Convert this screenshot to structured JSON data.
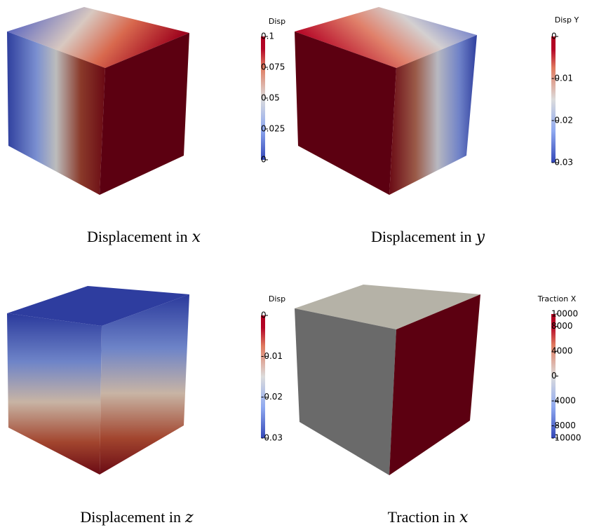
{
  "panels": [
    {
      "caption": "Displacement in",
      "variable": "x",
      "colorbar": {
        "title": "Disp",
        "range": [
          0,
          0.1
        ],
        "ticks": [
          0.1,
          0.075,
          0.05,
          0.025,
          0
        ]
      }
    },
    {
      "caption": "Displacement in",
      "variable": "y",
      "colorbar": {
        "title": "Disp Y",
        "range": [
          -0.03,
          0
        ],
        "ticks": [
          0,
          -0.01,
          -0.02,
          -0.03
        ]
      }
    },
    {
      "caption": "Displacement in",
      "variable": "z",
      "colorbar": {
        "title": "Disp",
        "range": [
          -0.03,
          0
        ],
        "ticks": [
          0,
          -0.01,
          -0.02,
          -0.03
        ]
      }
    },
    {
      "caption": "Traction in",
      "variable": "x",
      "colorbar": {
        "title": "Traction X",
        "range": [
          -10000,
          10000
        ],
        "ticks": [
          10000,
          8000,
          4000,
          0,
          -4000,
          -8000,
          -10000
        ]
      }
    }
  ]
}
